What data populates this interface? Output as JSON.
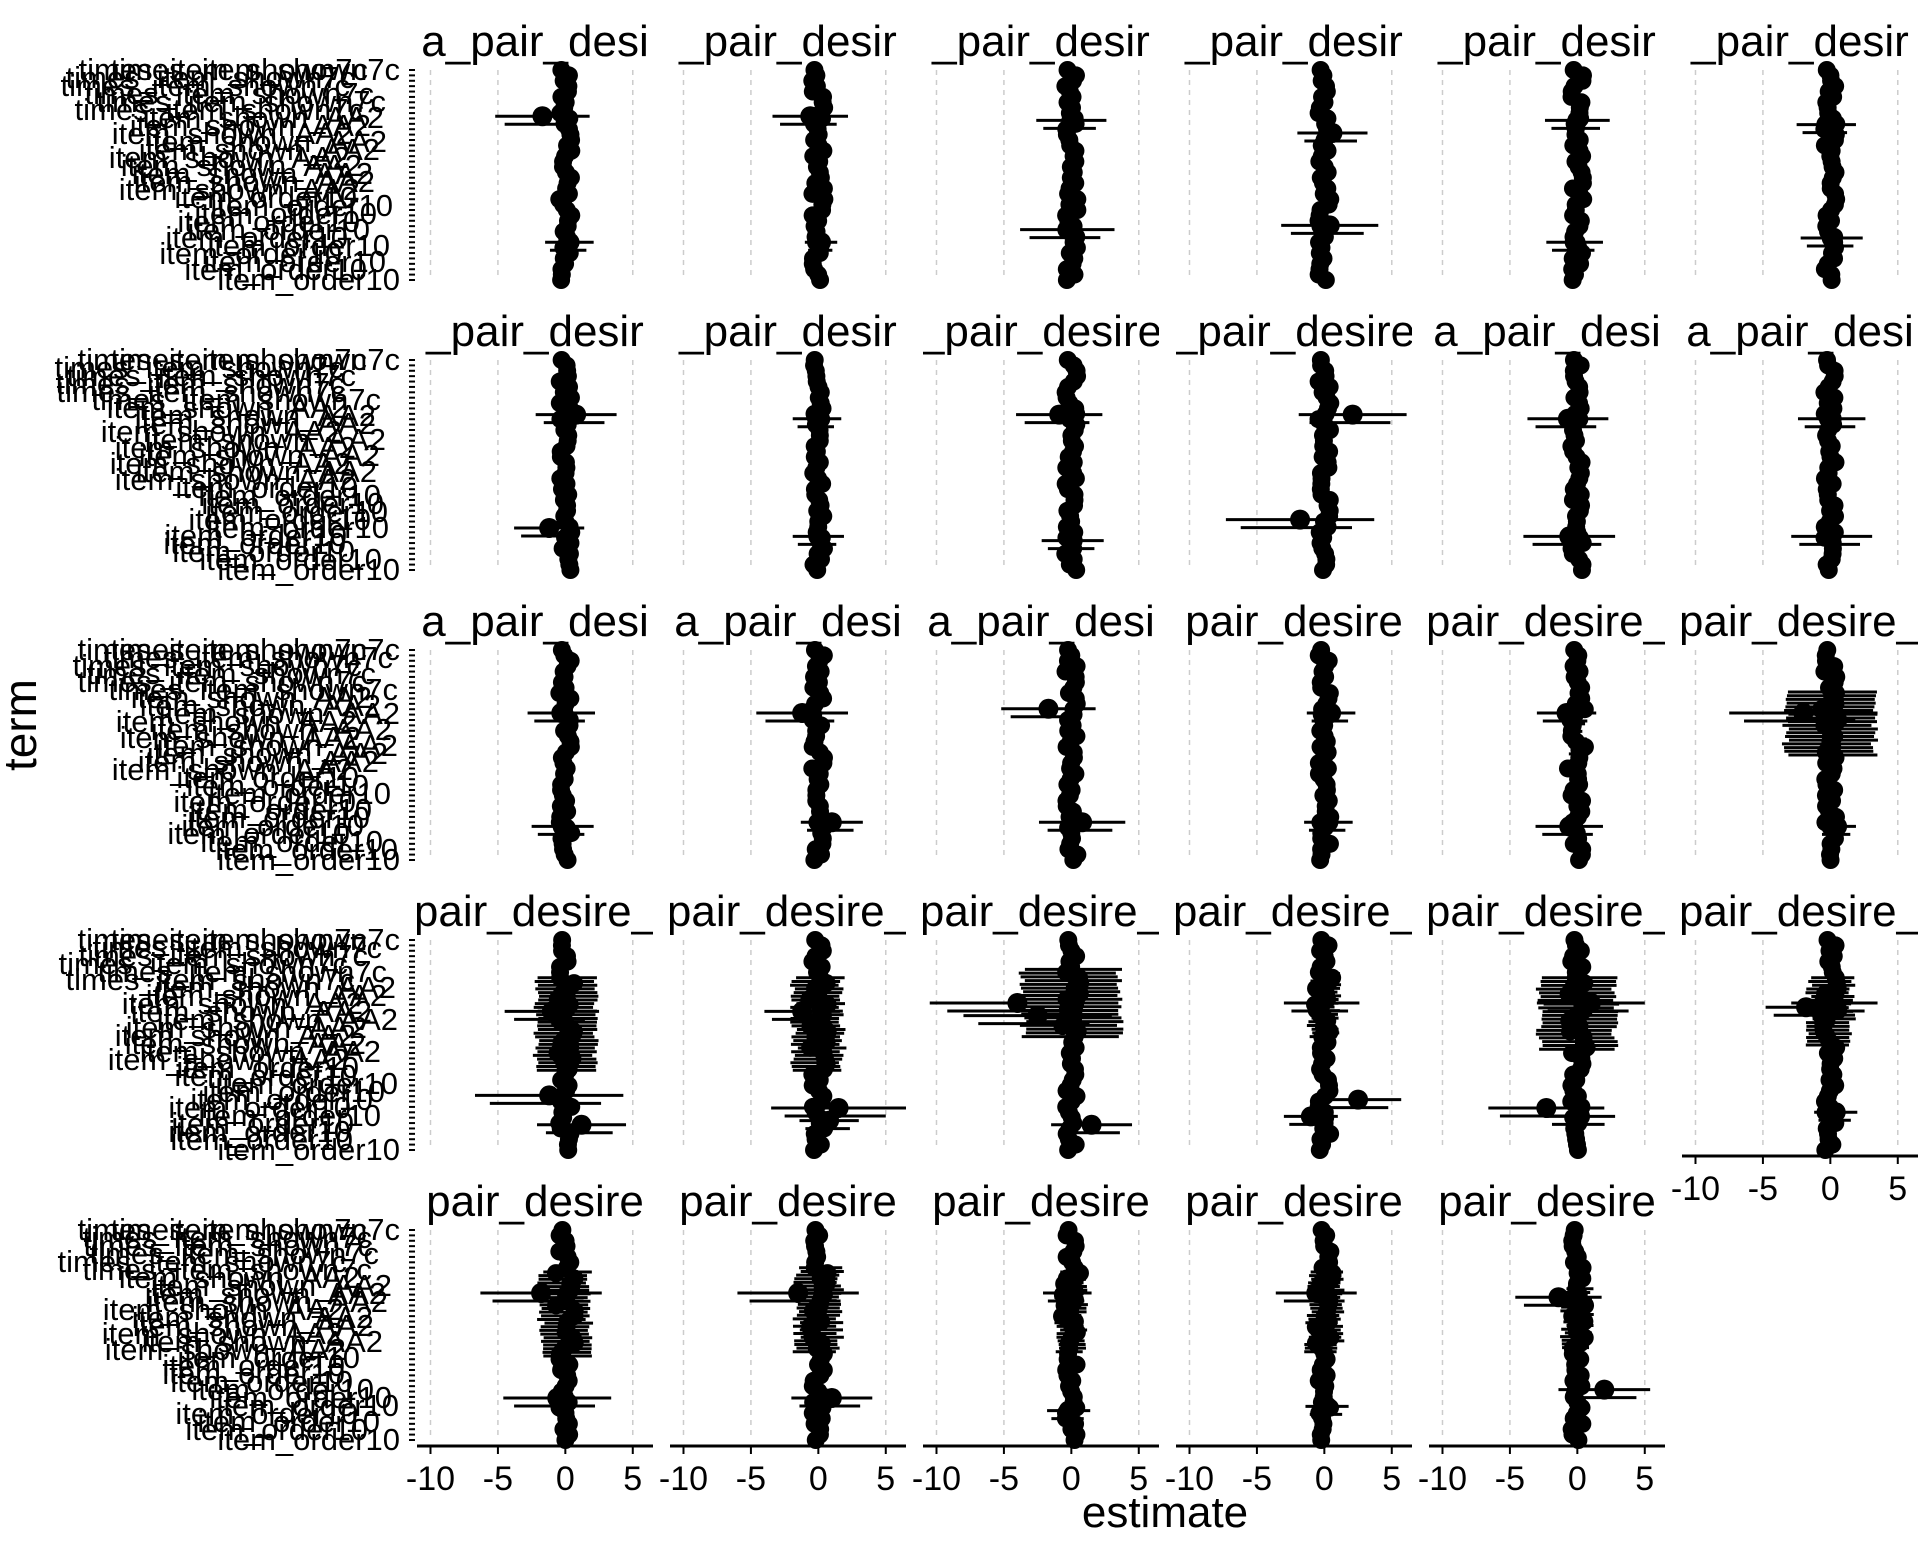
{
  "chart_data": {
    "type": "scatter",
    "subtype": "faceted coefficient plot (point estimate with horizontal error bars)",
    "xlabel": "estimate",
    "ylabel": "term",
    "x_ticks": [
      "-10",
      "-5",
      "0",
      "5"
    ],
    "xlim": [
      -11,
      6.5
    ],
    "grid": "dashed vertical lines at x ticks",
    "colors": {
      "marks": "#000000",
      "grid": "#cccccc",
      "background": "#ffffff"
    },
    "term_labels": [
      "times_item_shown7c",
      "item_shown_AA2",
      "item_order10"
    ],
    "rows": [
      {
        "facet_titles": [
          "a_pair_desi",
          "_pair_desir",
          "_pair_desir",
          "_pair_desir",
          "_pair_desir",
          "_pair_desir"
        ],
        "highlights": [
          [
            [
              -1.7,
              0.22,
              3.5
            ],
            [
              0.3,
              0.82,
              1.8
            ]
          ],
          [
            [
              -0.6,
              0.22,
              2.8
            ],
            [
              0.2,
              0.82,
              1.2
            ]
          ],
          [
            [
              0.0,
              0.24,
              2.6
            ],
            [
              -0.3,
              0.76,
              3.5
            ]
          ],
          [
            [
              0.6,
              0.3,
              2.6
            ],
            [
              0.4,
              0.74,
              3.6
            ]
          ],
          [
            [
              0.0,
              0.24,
              2.4
            ],
            [
              -0.2,
              0.82,
              2.1
            ]
          ],
          [
            [
              -0.3,
              0.26,
              2.2
            ],
            [
              0.1,
              0.8,
              2.3
            ]
          ]
        ]
      },
      {
        "facet_titles": [
          "_pair_desir",
          "_pair_desir",
          "_pair_desire",
          "_pair_desire",
          "a_pair_desi",
          "a_pair_desi"
        ],
        "highlights": [
          [
            [
              0.8,
              0.26,
              3.0
            ],
            [
              -1.2,
              0.8,
              2.6
            ]
          ],
          [
            [
              -0.1,
              0.28,
              1.8
            ],
            [
              0.0,
              0.84,
              1.9
            ]
          ],
          [
            [
              -0.9,
              0.26,
              3.2
            ],
            [
              0.1,
              0.86,
              2.3
            ]
          ],
          [
            [
              2.1,
              0.26,
              4.0
            ],
            [
              -1.8,
              0.76,
              5.5
            ]
          ],
          [
            [
              -0.7,
              0.28,
              3.0
            ],
            [
              -0.6,
              0.84,
              3.4
            ]
          ],
          [
            [
              0.1,
              0.28,
              2.5
            ],
            [
              0.1,
              0.84,
              3.0
            ]
          ]
        ]
      },
      {
        "facet_titles": [
          "a_pair_desi",
          "a_pair_desi",
          "a_pair_desi",
          "pair_desire",
          "pair_desire_",
          "pair_desire_"
        ],
        "highlights": [
          [
            [
              -0.3,
              0.3,
              2.5
            ],
            [
              -0.2,
              0.84,
              2.3
            ]
          ],
          [
            [
              -1.2,
              0.3,
              3.4
            ],
            [
              1.0,
              0.82,
              2.3
            ]
          ],
          [
            [
              -1.7,
              0.28,
              3.5
            ],
            [
              0.8,
              0.82,
              3.2
            ]
          ],
          [
            [
              0.5,
              0.3,
              1.8
            ],
            [
              0.3,
              0.82,
              1.8
            ]
          ],
          [
            [
              -0.8,
              0.3,
              2.2
            ],
            [
              -0.6,
              0.84,
              2.5
            ]
          ],
          [
            [
              -2.0,
              0.3,
              5.5
            ],
            [
              0.5,
              0.84,
              1.4
            ]
          ]
        ],
        "bands": [
          null,
          null,
          null,
          null,
          [
            0.28,
            0.62,
            0.4
          ],
          [
            0.2,
            0.5,
            3.3
          ]
        ]
      },
      {
        "facet_titles": [
          "pair_desire_",
          "pair_desire_",
          "pair_desire_",
          "pair_desire_",
          "pair_desire_",
          "pair_desire_"
        ],
        "highlights": [
          [
            [
              -1.0,
              0.34,
              3.5
            ],
            [
              -1.2,
              0.74,
              5.5
            ],
            [
              1.2,
              0.88,
              3.3
            ]
          ],
          [
            [
              -1.2,
              0.34,
              2.8
            ],
            [
              1.5,
              0.8,
              5.0
            ],
            [
              0.8,
              0.86,
              2.2
            ]
          ],
          [
            [
              -4.0,
              0.3,
              6.5
            ],
            [
              -2.5,
              0.36,
              5.5
            ],
            [
              1.5,
              0.88,
              3.0
            ]
          ],
          [
            [
              -0.2,
              0.3,
              2.8
            ],
            [
              2.5,
              0.76,
              3.2
            ],
            [
              -1.0,
              0.84,
              2.0
            ]
          ],
          [
            [
              1.0,
              0.3,
              4.0
            ],
            [
              -2.3,
              0.8,
              4.3
            ],
            [
              0.2,
              0.84,
              2.6
            ]
          ],
          [
            [
              -1.8,
              0.32,
              3.0
            ],
            [
              0.3,
              0.3,
              3.2
            ],
            [
              0.4,
              0.82,
              1.6
            ]
          ]
        ],
        "bands": [
          [
            0.18,
            0.62,
            2.2
          ],
          [
            0.18,
            0.62,
            1.8
          ],
          [
            0.14,
            0.46,
            3.6
          ],
          [
            0.16,
            0.46,
            1.0
          ],
          [
            0.18,
            0.52,
            2.8
          ],
          [
            0.18,
            0.5,
            1.6
          ]
        ]
      },
      {
        "facet_titles": [
          "pair_desire",
          "pair_desire",
          "pair_desire",
          "pair_desire",
          "pair_desire"
        ],
        "highlights": [
          [
            [
              -1.8,
              0.3,
              4.5
            ],
            [
              -0.6,
              0.8,
              4.0
            ]
          ],
          [
            [
              -1.5,
              0.3,
              4.5
            ],
            [
              1.0,
              0.8,
              3.0
            ]
          ],
          [
            [
              -0.3,
              0.3,
              1.8
            ],
            [
              -0.2,
              0.86,
              1.6
            ]
          ],
          [
            [
              -0.6,
              0.3,
              3.0
            ],
            [
              0.2,
              0.84,
              1.6
            ]
          ],
          [
            [
              -1.4,
              0.32,
              3.2
            ],
            [
              2.0,
              0.76,
              3.4
            ]
          ]
        ],
        "bands": [
          [
            0.2,
            0.6,
            1.8
          ],
          [
            0.18,
            0.58,
            1.6
          ],
          [
            0.2,
            0.58,
            1.0
          ],
          [
            0.2,
            0.58,
            1.2
          ],
          [
            0.28,
            0.56,
            1.0
          ]
        ]
      }
    ]
  }
}
